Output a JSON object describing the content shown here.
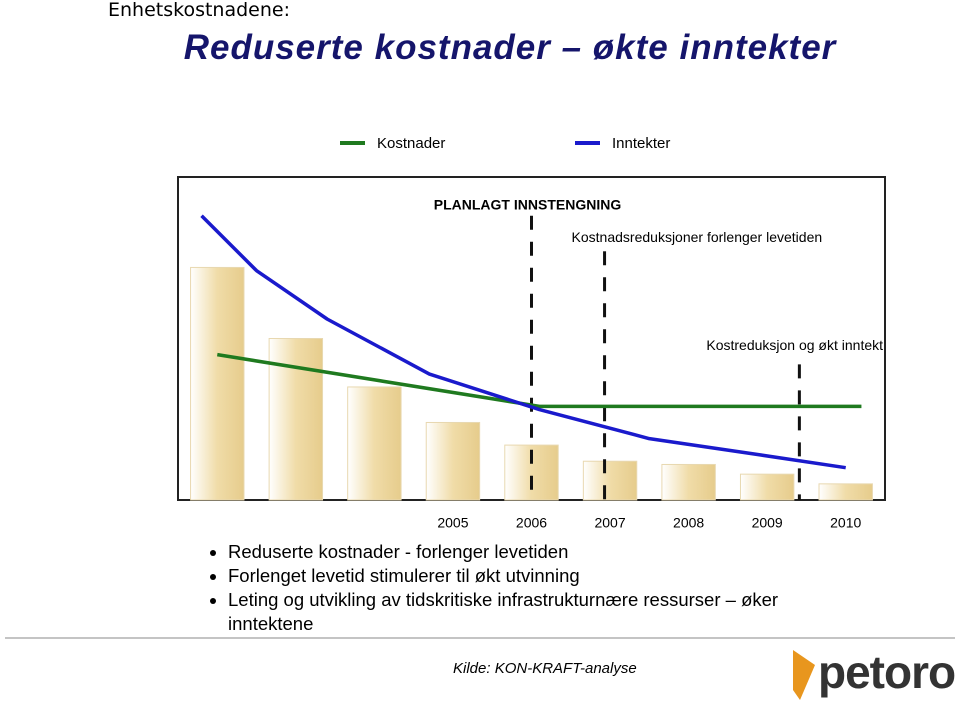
{
  "header": {
    "section": "Enhetskostnadene:",
    "title": "Reduserte kostnader – økte inntekter"
  },
  "chart_data": {
    "type": "bar",
    "categories": [
      null,
      null,
      null,
      "2005",
      "2006",
      "2007",
      "2008",
      "2009",
      "2010"
    ],
    "values": [
      72,
      50,
      35,
      24,
      17,
      12,
      11,
      8,
      5
    ],
    "color": "#f0dca8",
    "xlim": [
      0,
      9
    ],
    "ylim": [
      0,
      100
    ],
    "series": [
      {
        "name": "Kostnader",
        "color": "#1f7a1f",
        "x": [
          0.5,
          4.6,
          5.4,
          8.7
        ],
        "values": [
          45,
          29,
          29,
          29
        ]
      },
      {
        "name": "Inntekter",
        "color": "#1a1acc",
        "x": [
          0.3,
          1.0,
          1.9,
          3.2,
          4.6,
          6.0,
          7.4,
          8.5
        ],
        "values": [
          88,
          71,
          56,
          39,
          28,
          19,
          14,
          10
        ]
      }
    ],
    "annotations": [
      {
        "label": "PLANLAGT INNSTENGNING",
        "x": 4.5,
        "top": 88
      },
      {
        "label": "Kostnadsreduksjoner forlenger levetiden",
        "x": 5.43,
        "top": 77
      },
      {
        "label": "Kostreduksjon og økt inntekt",
        "x": 7.91,
        "top": 42
      }
    ]
  },
  "bullets": [
    "Reduserte kostnader  -  forlenger levetiden",
    "Forlenget levetid stimulerer til økt utvinning",
    "Leting og utvikling av tidskritiske infrastrukturnære ressurser – øker inntektene"
  ],
  "source": "Kilde: KON-KRAFT-analyse",
  "logo": "petoro"
}
